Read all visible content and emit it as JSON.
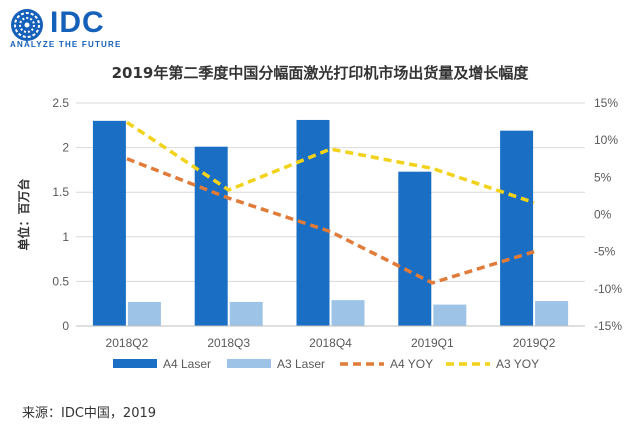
{
  "logo": {
    "name": "IDC",
    "tagline": "ANALYZE THE FUTURE",
    "color": "#1560b8"
  },
  "source_text": "来源：IDC中国，2019",
  "chart_data": {
    "type": "bar",
    "title": "2019年第二季度中国分幅面激光打印机市场出货量及增长幅度",
    "categories": [
      "2018Q2",
      "2018Q3",
      "2018Q4",
      "2019Q1",
      "2019Q2"
    ],
    "ylabel": "单位：百万台",
    "ylim": [
      0,
      2.5
    ],
    "y_ticks": [
      "0",
      "0.5",
      "1",
      "1.5",
      "2",
      "2.5"
    ],
    "y2lim": [
      -15,
      15
    ],
    "y2_ticks": [
      "-15%",
      "-10%",
      "-5%",
      "0%",
      "5%",
      "10%",
      "15%"
    ],
    "grid": true,
    "legend_position": "bottom",
    "series": [
      {
        "name": "A4 Laser",
        "kind": "bar",
        "axis": "left",
        "color": "#1a6fc4",
        "values": [
          2.3,
          2.01,
          2.31,
          1.73,
          2.19
        ]
      },
      {
        "name": "A3 Laser",
        "kind": "bar",
        "axis": "left",
        "color": "#9dc3e6",
        "values": [
          0.27,
          0.27,
          0.29,
          0.24,
          0.28
        ]
      },
      {
        "name": "A4 YOY",
        "kind": "line",
        "axis": "right",
        "style": "dashed",
        "color": "#e07b39",
        "values": [
          7.5,
          2.2,
          -2.3,
          -9.2,
          -5.0
        ]
      },
      {
        "name": "A3 YOY",
        "kind": "line",
        "axis": "right",
        "style": "dashed",
        "color": "#f2d21a",
        "values": [
          12.4,
          3.3,
          8.8,
          6.2,
          1.6
        ]
      }
    ]
  }
}
